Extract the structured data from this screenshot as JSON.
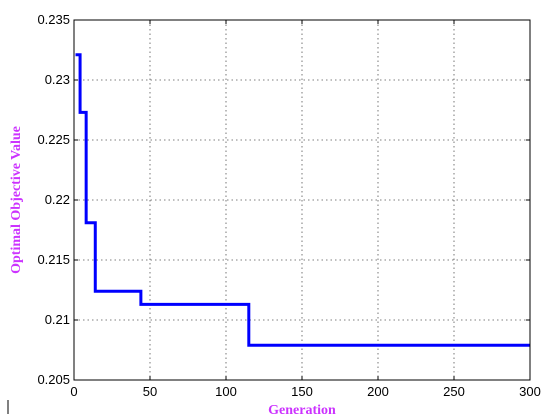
{
  "chart_data": {
    "type": "line",
    "title": "",
    "xlabel": "Generation",
    "ylabel": "Optimal Objective Value",
    "xlim": [
      0,
      300
    ],
    "ylim": [
      0.205,
      0.235
    ],
    "xticks": [
      0,
      50,
      100,
      150,
      200,
      250,
      300
    ],
    "xtick_labels": [
      "0",
      "50",
      "100",
      "150",
      "200",
      "250",
      "300"
    ],
    "yticks": [
      0.205,
      0.21,
      0.215,
      0.22,
      0.225,
      0.23,
      0.235
    ],
    "ytick_labels": [
      "0.205",
      "0.21",
      "0.215",
      "0.22",
      "0.225",
      "0.23",
      "0.235"
    ],
    "grid": true,
    "grid_style": "dotted",
    "series": [
      {
        "color": "#0000ff",
        "step": true,
        "x": [
          1,
          4,
          8,
          14,
          44,
          115,
          300
        ],
        "y": [
          0.2321,
          0.2273,
          0.2181,
          0.2124,
          0.2113,
          0.2079,
          0.2079
        ]
      }
    ],
    "axis_label_color": "#cc33ff"
  }
}
